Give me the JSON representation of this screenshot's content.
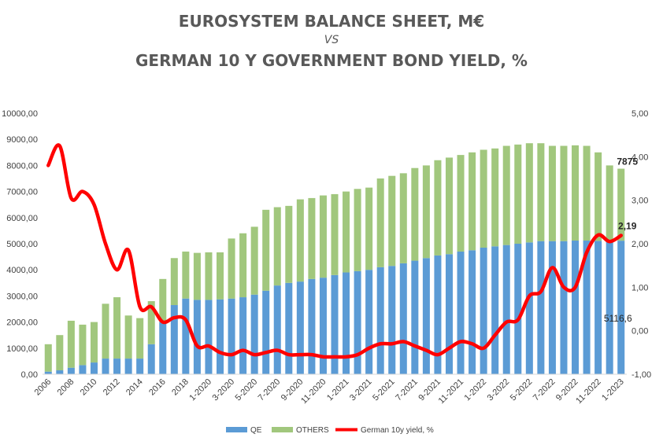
{
  "chart_data": {
    "type": "bar",
    "title": "EUROSYSTEM BALANCE SHEET, M€",
    "subtitle": "VS",
    "title2": "GERMAN 10 Y GOVERNMENT BOND YIELD, %",
    "stacked": true,
    "grid": false,
    "legend_position": "bottom",
    "categories": [
      "2006",
      "2007",
      "2008",
      "2009",
      "2010",
      "2011",
      "2012",
      "2013",
      "2014",
      "2015",
      "2016",
      "2017",
      "2018",
      "2019",
      "1-2020",
      "2-2020",
      "3-2020",
      "4-2020",
      "5-2020",
      "6-2020",
      "7-2020",
      "8-2020",
      "9-2020",
      "10-2020",
      "11-2020",
      "12-2020",
      "1-2021",
      "2-2021",
      "3-2021",
      "4-2021",
      "5-2021",
      "6-2021",
      "7-2021",
      "8-2021",
      "9-2021",
      "10-2021",
      "11-2021",
      "12-2021",
      "1-2022",
      "2-2022",
      "3-2022",
      "4-2022",
      "5-2022",
      "6-2022",
      "7-2022",
      "8-2022",
      "9-2022",
      "10-2022",
      "11-2022",
      "12-2022",
      "1-2023"
    ],
    "x_tick_labels": [
      "2006",
      "",
      "2008",
      "",
      "2010",
      "",
      "2012",
      "",
      "2014",
      "",
      "2016",
      "",
      "2018",
      "",
      "1-2020",
      "",
      "3-2020",
      "",
      "5-2020",
      "",
      "7-2020",
      "",
      "9-2020",
      "",
      "11-2020",
      "",
      "1-2021",
      "",
      "3-2021",
      "",
      "5-2021",
      "",
      "7-2021",
      "",
      "9-2021",
      "",
      "11-2021",
      "",
      "1-2022",
      "",
      "3-2022",
      "",
      "5-2022",
      "",
      "7-2022",
      "",
      "9-2022",
      "",
      "11-2022",
      "",
      "1-2023"
    ],
    "y_left": {
      "min": 0,
      "max": 10000,
      "step": 1000,
      "tick_labels": [
        "0,00",
        "1000,00",
        "2000,00",
        "3000,00",
        "4000,00",
        "5000,00",
        "6000,00",
        "7000,00",
        "8000,00",
        "9000,00",
        "10000,00"
      ]
    },
    "y_right": {
      "min": -1,
      "max": 5,
      "step": 1,
      "tick_labels": [
        "-1,00",
        "0,00",
        "1,00",
        "2,00",
        "3,00",
        "4,00",
        "5,00"
      ]
    },
    "series": [
      {
        "name": "QE",
        "color": "#5b9bd5",
        "kind": "bar",
        "axis": "left",
        "values": [
          100,
          150,
          250,
          350,
          450,
          600,
          600,
          600,
          600,
          1150,
          2000,
          2650,
          2900,
          2850,
          2850,
          2870,
          2900,
          2950,
          3050,
          3200,
          3400,
          3500,
          3550,
          3650,
          3700,
          3800,
          3900,
          3950,
          4000,
          4100,
          4150,
          4250,
          4350,
          4450,
          4550,
          4600,
          4700,
          4750,
          4850,
          4900,
          4950,
          5000,
          5050,
          5100,
          5100,
          5100,
          5120,
          5120,
          5110,
          5110,
          5116.6
        ]
      },
      {
        "name": "OTHERS",
        "color": "#a1c77d",
        "kind": "bar",
        "axis": "left",
        "values": [
          1050,
          1350,
          1800,
          1550,
          1550,
          2100,
          2350,
          1650,
          1550,
          1650,
          1650,
          1800,
          1800,
          1800,
          1820,
          1800,
          2300,
          2450,
          2600,
          3100,
          3000,
          2950,
          3150,
          3100,
          3150,
          3100,
          3100,
          3150,
          3150,
          3400,
          3450,
          3450,
          3550,
          3550,
          3650,
          3700,
          3700,
          3750,
          3750,
          3750,
          3800,
          3800,
          3800,
          3750,
          3650,
          3650,
          3650,
          3630,
          3390,
          2890,
          2758.4
        ]
      },
      {
        "name": "German 10y yield, %",
        "color": "#ff0000",
        "kind": "line",
        "axis": "right",
        "values": [
          3.8,
          4.25,
          3.05,
          3.2,
          2.9,
          2.0,
          1.4,
          1.85,
          0.55,
          0.55,
          0.2,
          0.3,
          0.25,
          -0.35,
          -0.35,
          -0.5,
          -0.55,
          -0.45,
          -0.55,
          -0.5,
          -0.45,
          -0.55,
          -0.55,
          -0.55,
          -0.6,
          -0.6,
          -0.6,
          -0.55,
          -0.4,
          -0.3,
          -0.3,
          -0.25,
          -0.35,
          -0.45,
          -0.55,
          -0.4,
          -0.25,
          -0.3,
          -0.4,
          -0.1,
          0.2,
          0.25,
          0.8,
          0.9,
          1.45,
          1.0,
          1.0,
          1.8,
          2.2,
          2.05,
          2.19
        ]
      }
    ],
    "annotations": [
      {
        "label": "7875",
        "series": "total",
        "index": 50,
        "bold": true
      },
      {
        "label": "2,19",
        "series": "German 10y yield, %",
        "index": 50,
        "bold": true
      },
      {
        "label": "5116,6",
        "series": "QE",
        "index": 50,
        "bold": false
      }
    ]
  }
}
